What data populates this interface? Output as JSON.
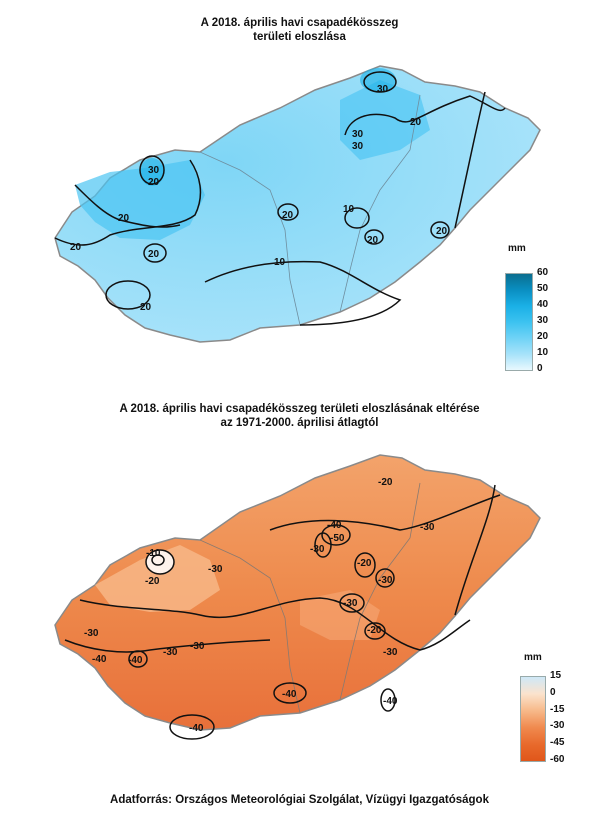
{
  "top_map": {
    "title_line1": "A 2018. április havi csapadékösszeg",
    "title_line2": "területi eloszlása",
    "legend": {
      "unit": "mm",
      "ticks": [
        "60",
        "50",
        "40",
        "30",
        "20",
        "10",
        "0"
      ],
      "colors": [
        "#0b6e8f",
        "#0a8fc2",
        "#1ab0e6",
        "#3cc2f0",
        "#6fd2f6",
        "#a6e2fa",
        "#e8f8fe"
      ]
    },
    "contour_labels": [
      "30",
      "20",
      "30",
      "30",
      "30",
      "20",
      "20",
      "20",
      "10",
      "20",
      "20",
      "10",
      "20",
      "20",
      "20"
    ]
  },
  "bottom_map": {
    "title_line1": "A 2018. április havi csapadékösszeg területi eloszlásának eltérése",
    "title_line2": "az 1971-2000. áprilisi átlagtól",
    "legend": {
      "unit": "mm",
      "ticks": [
        "15",
        "0",
        "-15",
        "-30",
        "-45",
        "-60"
      ],
      "colors": [
        "#cfe8f7",
        "#fbe3cd",
        "#f7b98a",
        "#f08a4f",
        "#e86a2c",
        "#e0561a"
      ]
    },
    "contour_labels": [
      "-20",
      "-40",
      "-50",
      "-30",
      "-30",
      "-10",
      "-20",
      "-20",
      "-30",
      "-20",
      "-30",
      "-30",
      "-30",
      "-30",
      "-40",
      "-40",
      "-30",
      "-40",
      "-30",
      "-40",
      "-40"
    ]
  },
  "source": "Adatforrás: Országos Meteorológiai Szolgálat, Vízügyi Igazgatóságok"
}
